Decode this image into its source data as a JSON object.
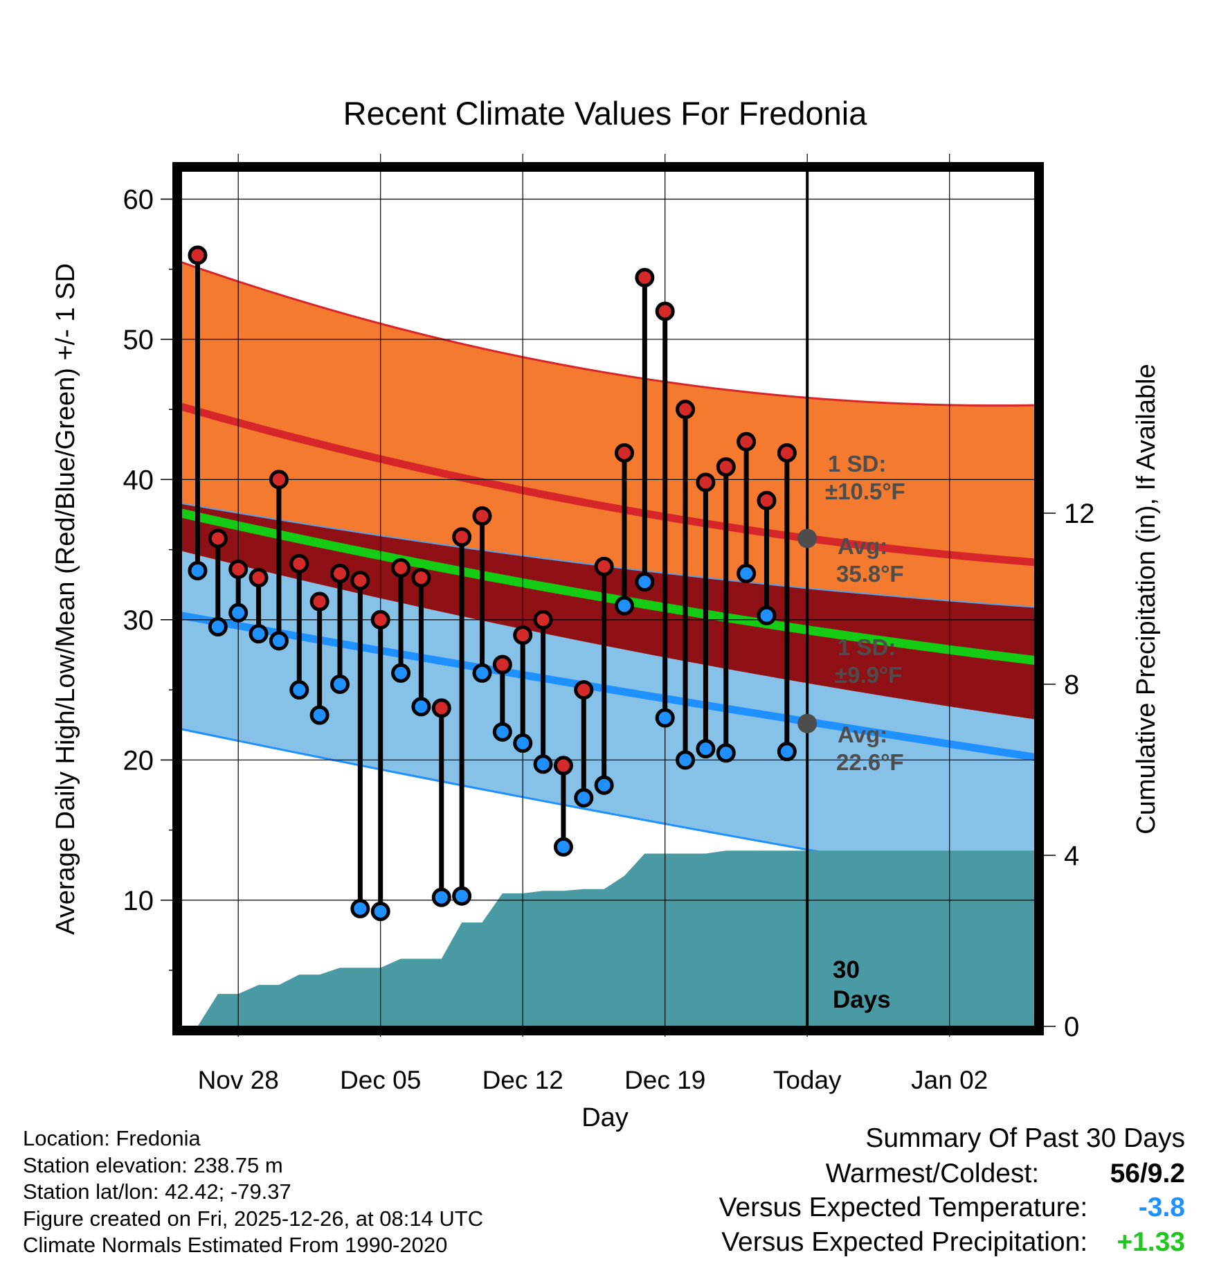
{
  "chart_data": {
    "type": "bar",
    "title": "Recent Climate Values For Fredonia",
    "xlabel": "Day",
    "ylabel_left": "Average Daily High/Low/Mean (Red/Blue/Green) +/- 1 SD",
    "ylabel_right": "Cumulative Precipitation (in), If Available",
    "ylim_left": [
      1,
      62
    ],
    "ylim_right": [
      0,
      20
    ],
    "yticks_left": [
      10,
      20,
      30,
      40,
      50,
      60
    ],
    "yticks_right": [
      0,
      4,
      8,
      12
    ],
    "x_range_days": [
      -2.8,
      39.2
    ],
    "x_ticks": [
      {
        "day": 0,
        "label": "Nov 28"
      },
      {
        "day": 7,
        "label": "Dec 05"
      },
      {
        "day": 14,
        "label": "Dec 12"
      },
      {
        "day": 21,
        "label": "Dec 19"
      },
      {
        "day": 28,
        "label": "Today"
      },
      {
        "day": 35,
        "label": "Jan 02"
      }
    ],
    "days": [
      -2,
      -1,
      0,
      1,
      2,
      3,
      4,
      5,
      6,
      7,
      8,
      9,
      10,
      11,
      12,
      13,
      14,
      15,
      16,
      17,
      18,
      19,
      20,
      21,
      22,
      23,
      24,
      25,
      26,
      27
    ],
    "highs": [
      56,
      35.8,
      33.6,
      33,
      40,
      34,
      31.3,
      33.3,
      32.8,
      30,
      33.7,
      33,
      23.7,
      35.9,
      37.4,
      26.8,
      28.9,
      30,
      19.6,
      25,
      33.8,
      41.9,
      54.4,
      52,
      45,
      39.8,
      40.9,
      42.7,
      38.5,
      41.9
    ],
    "lows": [
      33.5,
      29.5,
      30.5,
      29,
      28.5,
      25,
      23.2,
      25.4,
      9.4,
      9.2,
      26.2,
      23.8,
      10.2,
      10.3,
      26.2,
      22,
      21.2,
      19.7,
      13.8,
      17.3,
      18.2,
      31,
      32.7,
      23,
      20,
      20.8,
      20.5,
      33.3,
      30.3,
      20.6
    ],
    "normal_high": {
      "days": [
        -2.8,
        39.2
      ],
      "avg": [
        45.2,
        34.1
      ],
      "sd_upper": [
        55.5,
        45.3
      ],
      "avg_today": 35.8,
      "sd": 10.5
    },
    "normal_low": {
      "days": [
        -2.8,
        39.2
      ],
      "avg": [
        30.3,
        20.2
      ],
      "sd_lower": [
        22.2,
        10.8
      ],
      "avg_today": 22.6,
      "sd": 9.9
    },
    "normal_mean": {
      "days": [
        -2.8,
        39.2
      ],
      "upper": [
        38.3,
        30.9
      ],
      "lower": [
        34.9,
        22.9
      ],
      "line": [
        37.6,
        27.1
      ]
    },
    "precip_cumulative": {
      "days": [
        -2,
        -1,
        0,
        1,
        2,
        3,
        4,
        5,
        6,
        7,
        8,
        9,
        10,
        11,
        12,
        13,
        14,
        15,
        16,
        17,
        18,
        19,
        20,
        21,
        22,
        23,
        24,
        25,
        26,
        27,
        39.2
      ],
      "values": [
        0,
        0.76,
        0.76,
        0.97,
        0.97,
        1.21,
        1.21,
        1.37,
        1.37,
        1.37,
        1.58,
        1.58,
        1.58,
        2.43,
        2.43,
        3.11,
        3.11,
        3.17,
        3.17,
        3.21,
        3.21,
        3.52,
        4.04,
        4.04,
        4.04,
        4.04,
        4.11,
        4.11,
        4.11,
        4.11,
        4.11
      ]
    },
    "annotations": {
      "high_sd": "1 SD:",
      "high_sd_value": "±10.5°F",
      "high_avg": "Avg:",
      "high_avg_value": "35.8°F",
      "low_sd": "1 SD:",
      "low_sd_value": "±9.9°F",
      "low_avg": "Avg:",
      "low_avg_value": "22.6°F",
      "days_number": "30",
      "days_word": "Days"
    },
    "colors": {
      "high_band": "#f37a2e",
      "high_line": "#d6262a",
      "mean_band": "#8f1116",
      "mean_line": "#14cc14",
      "low_band": "#86c1e8",
      "low_line": "#1e90ff",
      "precip": "#4a9aa3",
      "high_marker": "#d42a2a",
      "low_marker": "#1e90ff",
      "annotation": "#4d4d4d"
    }
  },
  "station": {
    "location": "Location: Fredonia",
    "elevation": "Station elevation: 238.75 m",
    "latlon": "Station lat/lon: 42.42; -79.37",
    "created": "Figure created on Fri, 2025-12-26, at 08:14 UTC",
    "normals": "Climate Normals Estimated From 1990-2020"
  },
  "summary": {
    "title": "Summary Of Past 30 Days",
    "warm_cold_label": "Warmest/Coldest:",
    "warm_cold_value": "56/9.2",
    "temp_label": "Versus Expected Temperature:",
    "temp_value": "-3.8",
    "temp_color": "#1e90ff",
    "precip_label": "Versus Expected Precipitation:",
    "precip_value": "+1.33",
    "precip_color": "#1ec81e"
  }
}
